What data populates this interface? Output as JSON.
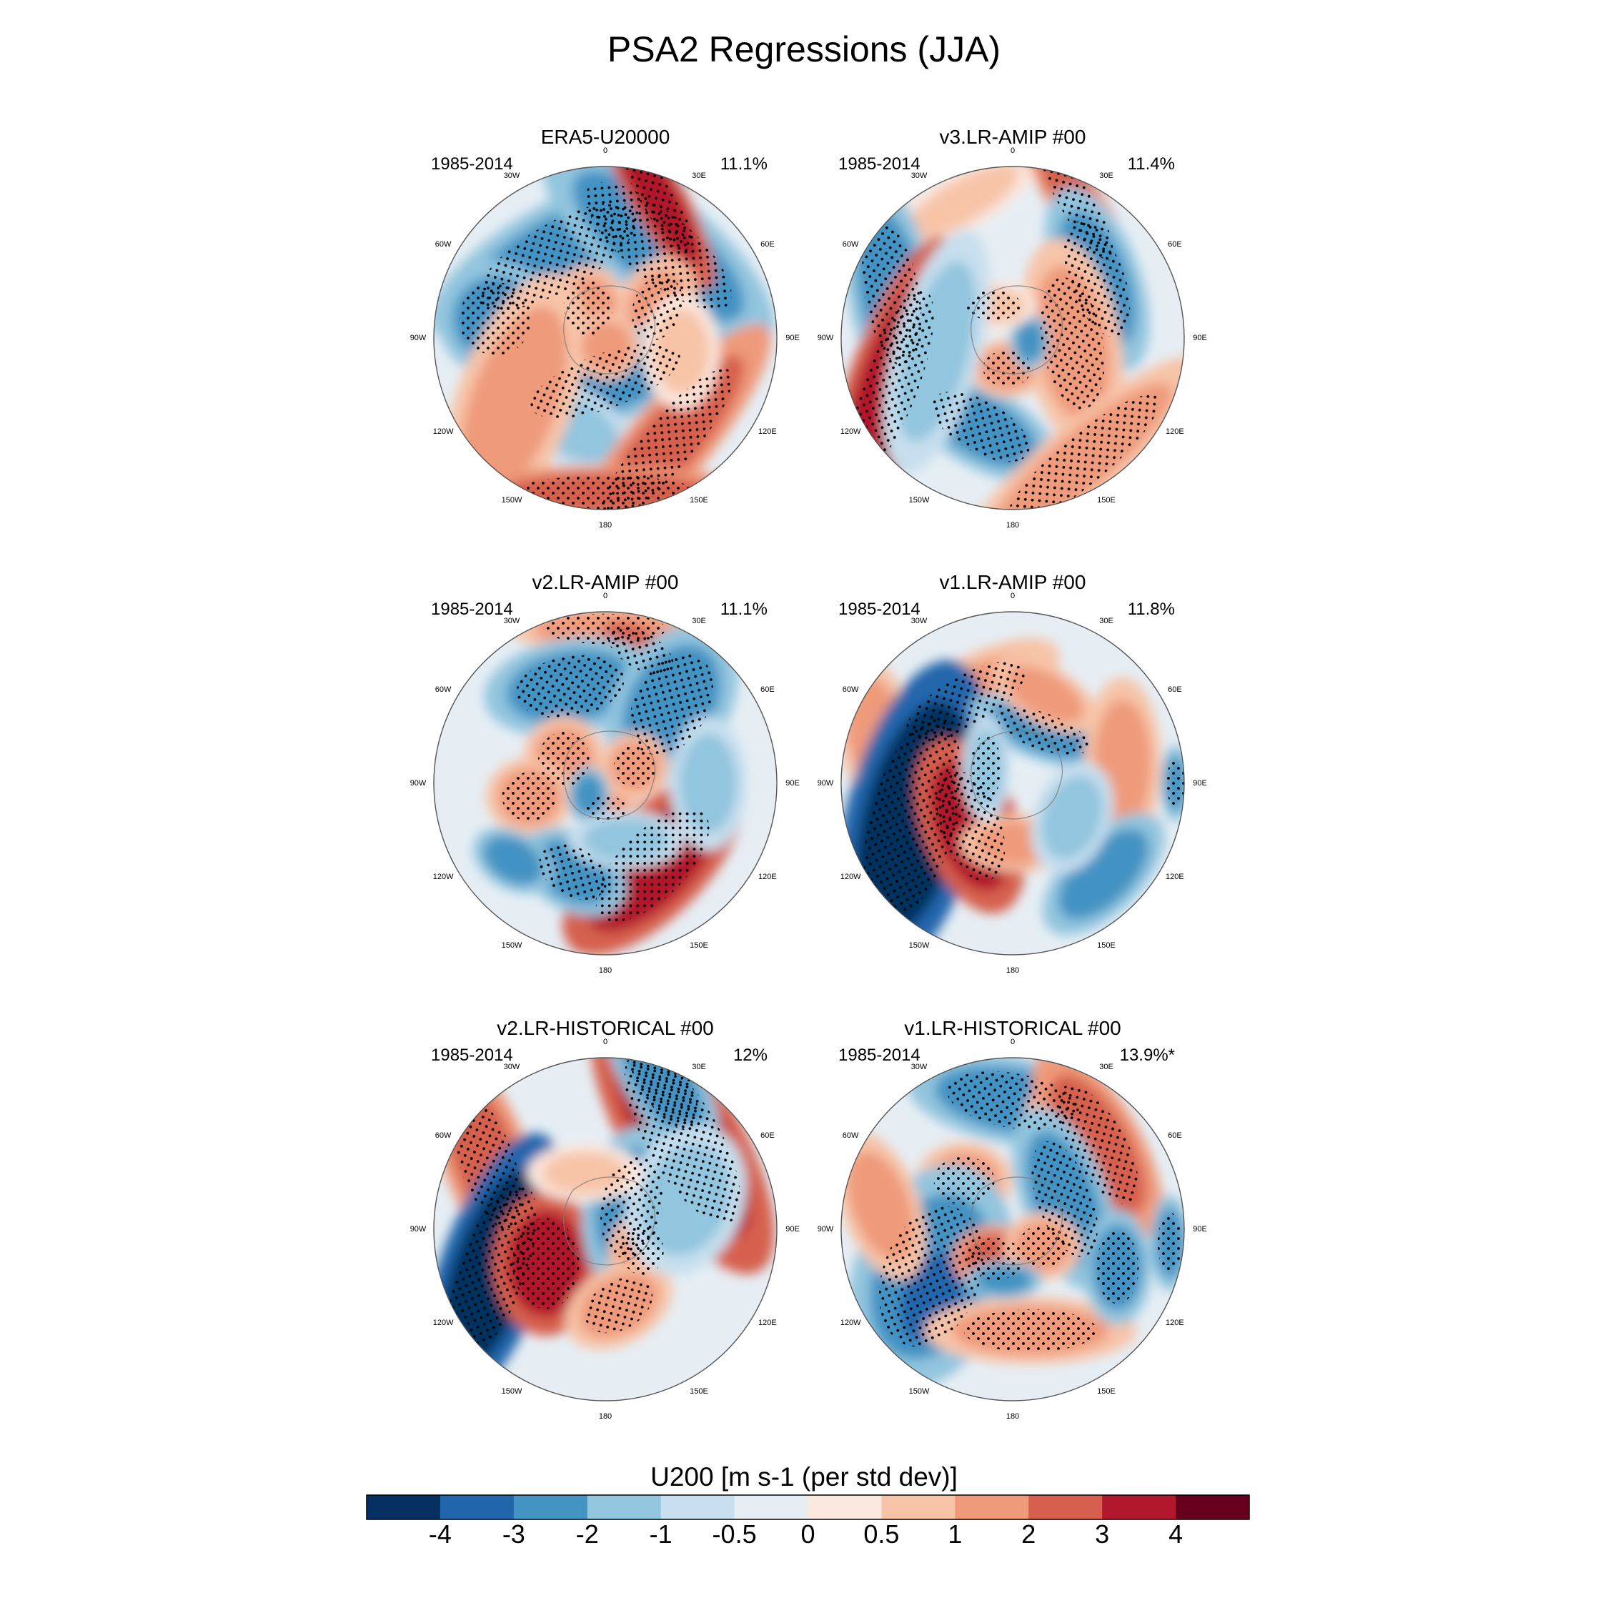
{
  "title": "PSA2 Regressions (JJA)",
  "colorbar": {
    "title": "U200 [m s-1 (per std dev)]",
    "levels": [
      "-4",
      "-3",
      "-2",
      "-1",
      "-0.5",
      "0",
      "0.5",
      "1",
      "2",
      "3",
      "4"
    ],
    "colors": [
      "#053061",
      "#2166ac",
      "#4393c3",
      "#92c5de",
      "#c7dfee",
      "#e6eef4",
      "#fbe8df",
      "#f7c4a8",
      "#ef9a7a",
      "#d6604d",
      "#b2182b",
      "#67001f"
    ]
  },
  "lon_labels": [
    "0",
    "30E",
    "60E",
    "90E",
    "120E",
    "150E",
    "180",
    "150W",
    "120W",
    "90W",
    "60W",
    "30W"
  ],
  "panels": [
    {
      "title": "ERA5-U20000",
      "period": "1985-2014",
      "pct": "11.1%"
    },
    {
      "title": "v3.LR-AMIP  #00",
      "period": "1985-2014",
      "pct": "11.4%"
    },
    {
      "title": "v2.LR-AMIP  #00",
      "period": "1985-2014",
      "pct": "11.1%"
    },
    {
      "title": "v1.LR-AMIP  #00",
      "period": "1985-2014",
      "pct": "11.8%"
    },
    {
      "title": "v2.LR-HISTORICAL  #00",
      "period": "1985-2014",
      "pct": "12%"
    },
    {
      "title": "v1.LR-HISTORICAL  #00",
      "period": "1985-2014",
      "pct": "13.9%*"
    }
  ]
}
